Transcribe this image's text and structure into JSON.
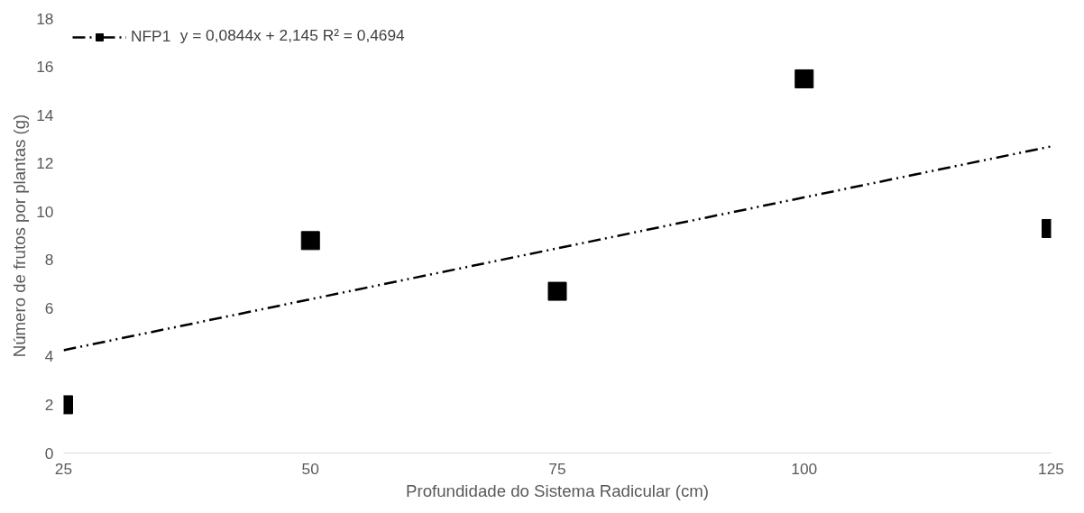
{
  "chart_data": {
    "type": "scatter",
    "xlabel": "Profundidade do Sistema Radicular (cm)",
    "ylabel": "Número de frutos por plantas (g)",
    "annotations": [
      "y = 0,0844x + 2,145 R² = 0,4694"
    ],
    "series": [
      {
        "name": "NFP1",
        "color": "#000000",
        "marker": "square",
        "x": [
          25,
          50,
          75,
          100,
          125
        ],
        "values": [
          2.0,
          8.8,
          6.7,
          15.5,
          9.3
        ]
      },
      {
        "type": "line",
        "color": "#000000",
        "line_style": "dashdotdot",
        "x": [
          25,
          125
        ],
        "values": [
          4.26,
          12.7
        ]
      }
    ],
    "xlim": [
      25,
      125
    ],
    "xticks": [
      25,
      50,
      75,
      100,
      125
    ],
    "ylim": [
      0,
      18
    ],
    "yticks": [
      0,
      2,
      4,
      6,
      8,
      10,
      12,
      14,
      16,
      18
    ],
    "grid": false,
    "legend": "top left"
  }
}
